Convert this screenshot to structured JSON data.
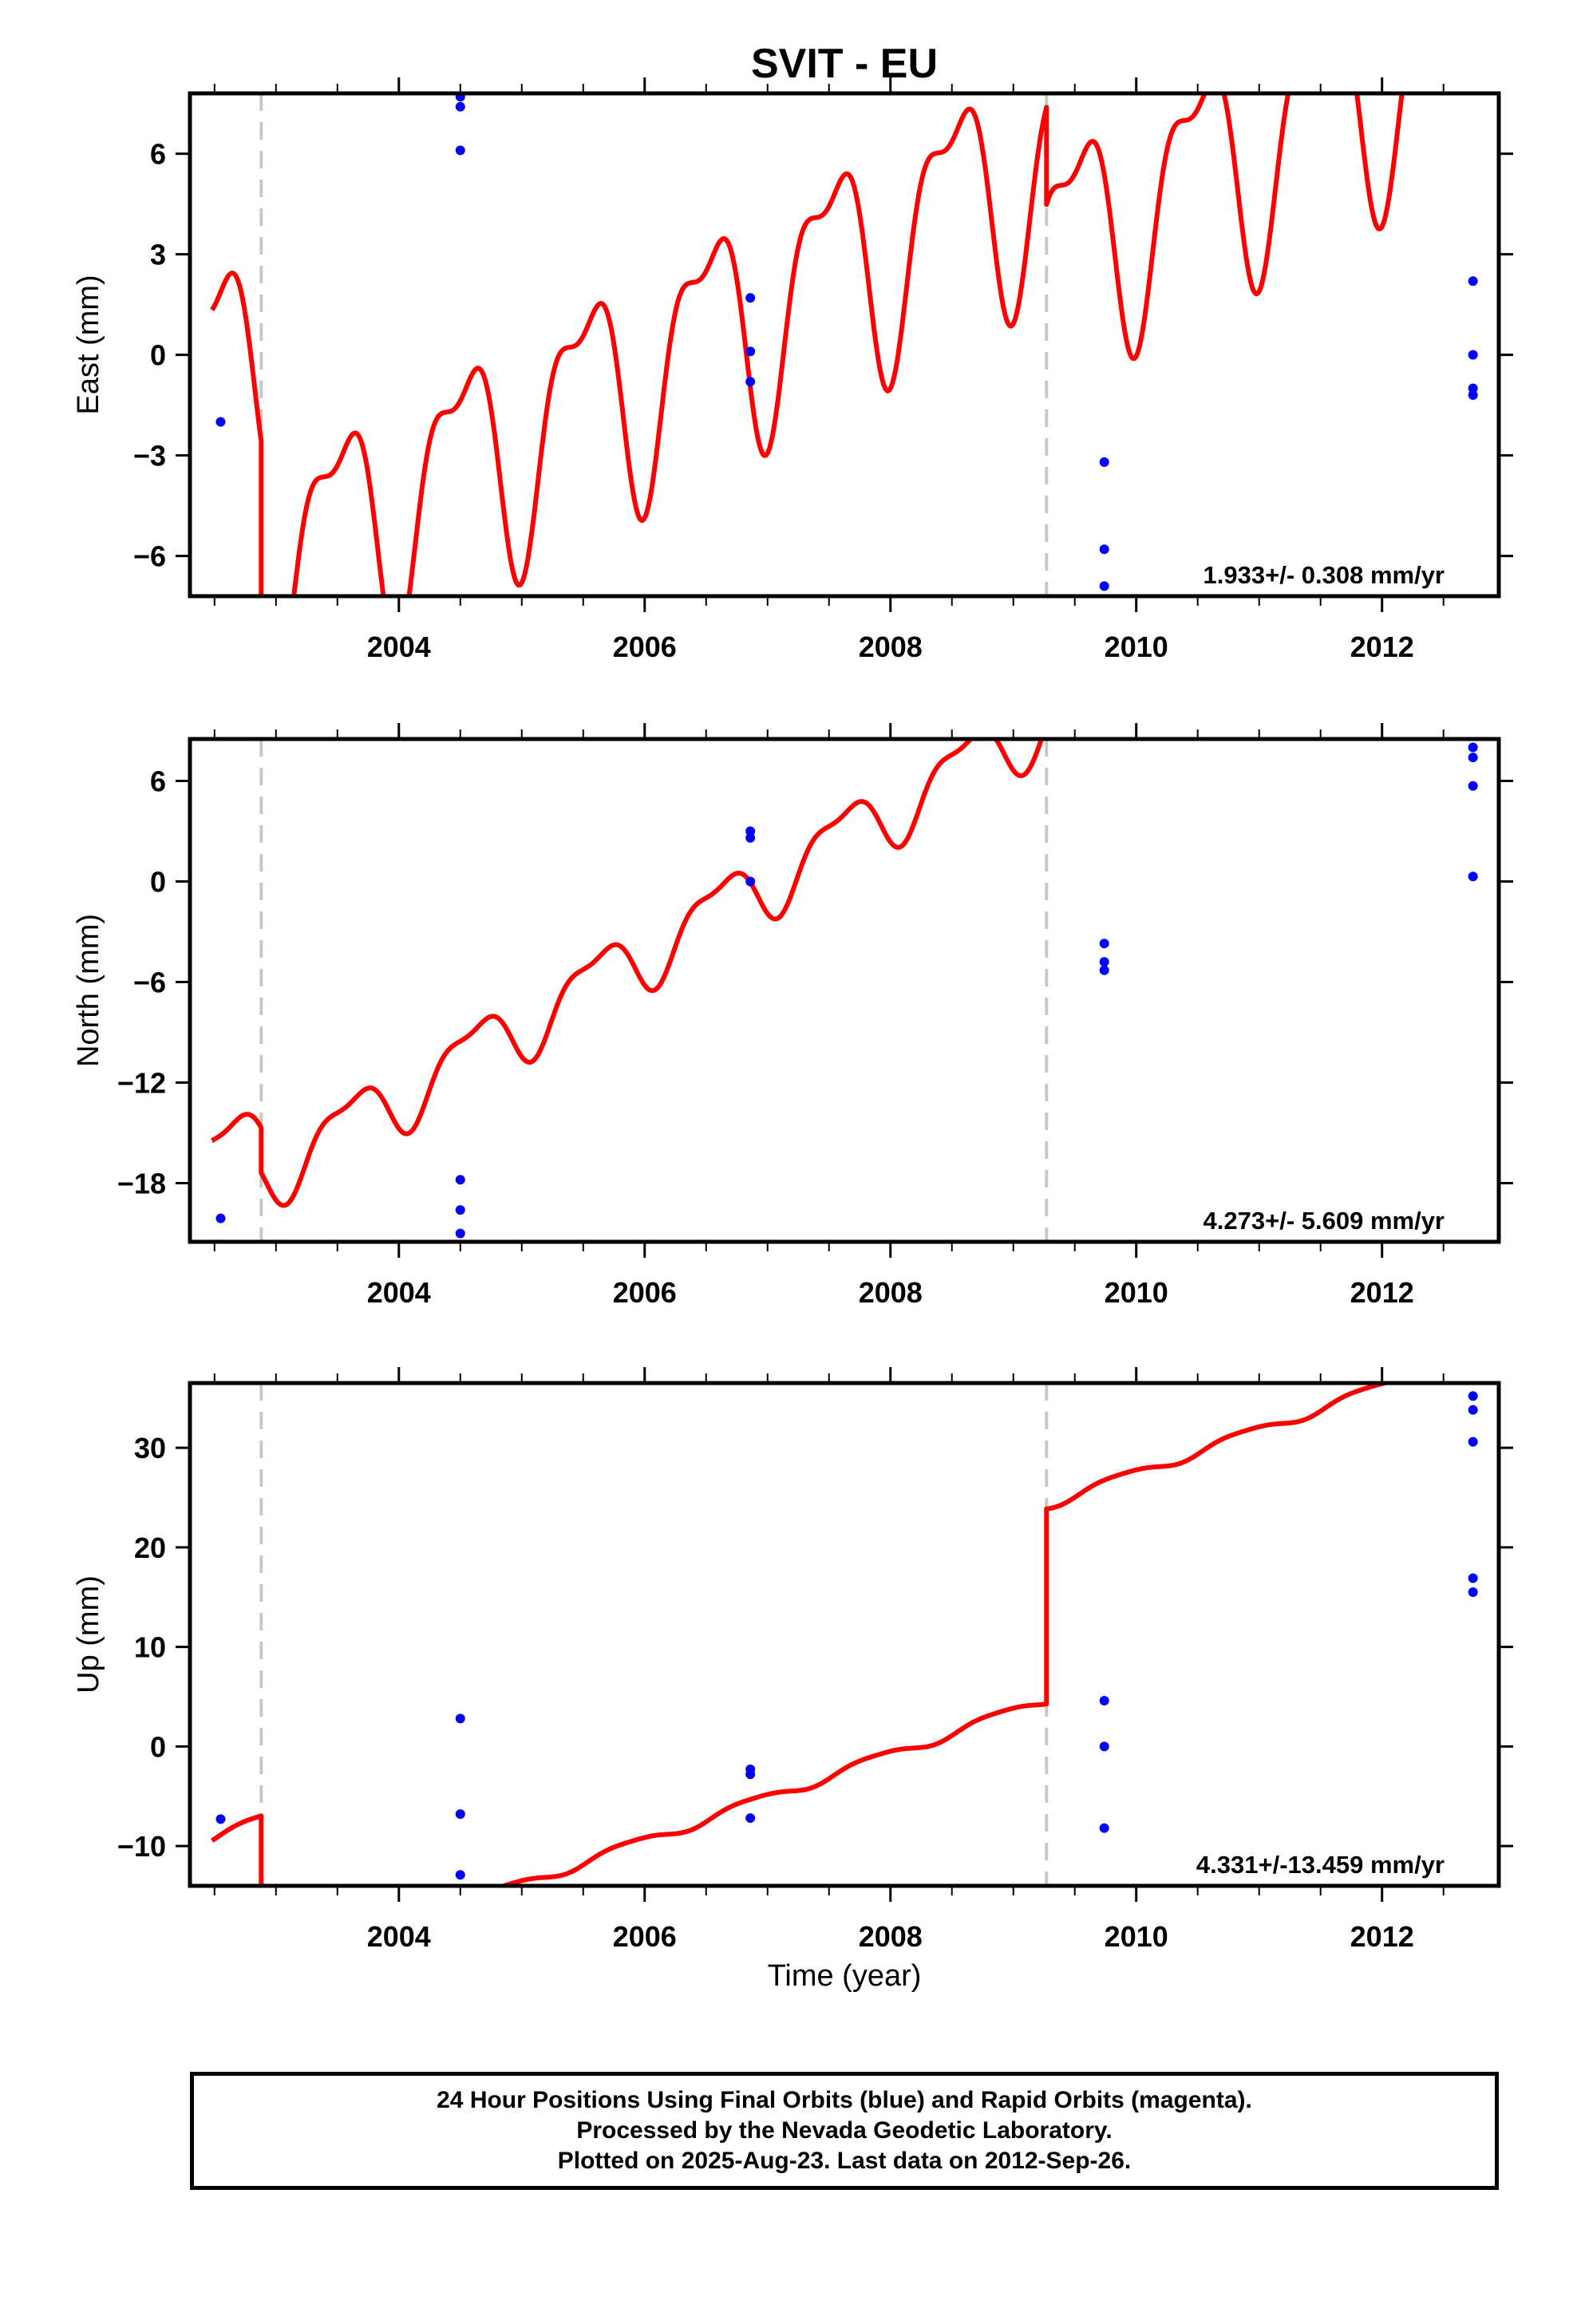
{
  "chart_data": [
    {
      "type": "line",
      "title": "SVIT - EU",
      "ylabel": "East (mm)",
      "xlabel": "",
      "xlim": [
        2002.3,
        2012.95
      ],
      "ylim": [
        -7.2,
        7.8
      ],
      "yticks": [
        6,
        3,
        0,
        -3,
        -6
      ],
      "ytick_labels": [
        "6",
        "3",
        "0",
        "−3",
        "−6"
      ],
      "xticks": [
        2004,
        2006,
        2008,
        2010,
        2012
      ],
      "xtick_labels": [
        "2004",
        "2006",
        "2008",
        "2010",
        "2012"
      ],
      "breaks": [
        2002.88,
        2009.27
      ],
      "rate_text": "1.933+/- 0.308 mm/yr",
      "model": {
        "segments": [
          [
            2002.48,
            2002.88
          ],
          [
            2002.88,
            2009.27
          ],
          [
            2009.27,
            2012.75
          ]
        ],
        "offsets": [
          -0.5,
          -7.2,
          -10.1
        ],
        "rate": 1.933,
        "annual_amp": 3.2,
        "annual_phase": 0.25,
        "semi_amp": 1.3,
        "semi_phase": 0.1
      },
      "points": [
        {
          "x": 2002.55,
          "y": -2.0
        },
        {
          "x": 2004.5,
          "y": 7.7
        },
        {
          "x": 2004.5,
          "y": 7.4
        },
        {
          "x": 2004.5,
          "y": 6.1
        },
        {
          "x": 2006.86,
          "y": 1.7
        },
        {
          "x": 2006.86,
          "y": 0.1
        },
        {
          "x": 2006.86,
          "y": -0.8
        },
        {
          "x": 2009.74,
          "y": -3.2
        },
        {
          "x": 2009.74,
          "y": -5.8
        },
        {
          "x": 2009.74,
          "y": -6.9
        },
        {
          "x": 2012.74,
          "y": 2.2
        },
        {
          "x": 2012.74,
          "y": 0.0
        },
        {
          "x": 2012.74,
          "y": -1.0
        },
        {
          "x": 2012.74,
          "y": -1.2
        }
      ]
    },
    {
      "type": "line",
      "title": "",
      "ylabel": "North (mm)",
      "xlabel": "",
      "xlim": [
        2002.3,
        2012.95
      ],
      "ylim": [
        -21.5,
        8.5
      ],
      "yticks": [
        6,
        0,
        -6,
        -12,
        -18
      ],
      "ytick_labels": [
        "6",
        "0",
        "−6",
        "−12",
        "−18"
      ],
      "xticks": [
        2004,
        2006,
        2008,
        2010,
        2012
      ],
      "xtick_labels": [
        "2004",
        "2006",
        "2008",
        "2010",
        "2012"
      ],
      "breaks": [
        2002.88,
        2009.27
      ],
      "rate_text": "4.273+/- 5.609 mm/yr",
      "model": {
        "segments": [
          [
            2002.48,
            2002.88
          ],
          [
            2002.88,
            2009.27
          ],
          [
            2009.27,
            2012.75
          ]
        ],
        "offsets": [
          -16.5,
          -19.2,
          -11.8
        ],
        "rate": 4.273,
        "annual_amp": 1.9,
        "annual_phase": 0.35,
        "semi_amp": 0.7,
        "semi_phase": 0.2
      },
      "points": [
        {
          "x": 2002.55,
          "y": -20.1
        },
        {
          "x": 2004.5,
          "y": -17.8
        },
        {
          "x": 2004.5,
          "y": -19.6
        },
        {
          "x": 2004.5,
          "y": -21.0
        },
        {
          "x": 2006.86,
          "y": 3.0
        },
        {
          "x": 2006.86,
          "y": 2.6
        },
        {
          "x": 2006.86,
          "y": 0.0
        },
        {
          "x": 2009.74,
          "y": -3.7
        },
        {
          "x": 2009.74,
          "y": -4.8
        },
        {
          "x": 2009.74,
          "y": -5.3
        },
        {
          "x": 2012.74,
          "y": 8.0
        },
        {
          "x": 2012.74,
          "y": 7.4
        },
        {
          "x": 2012.74,
          "y": 5.7
        },
        {
          "x": 2012.74,
          "y": 0.3
        }
      ]
    },
    {
      "type": "line",
      "title": "",
      "ylabel": "Up (mm)",
      "xlabel": "Time (year)",
      "xlim": [
        2002.3,
        2012.95
      ],
      "ylim": [
        -14,
        36.5
      ],
      "yticks": [
        30,
        20,
        10,
        0,
        -10
      ],
      "ytick_labels": [
        "30",
        "20",
        "10",
        "0",
        "−10"
      ],
      "xticks": [
        2004,
        2006,
        2008,
        2010,
        2012
      ],
      "xtick_labels": [
        "2004",
        "2006",
        "2008",
        "2010",
        "2012"
      ],
      "breaks": [
        2002.88,
        2009.27
      ],
      "rate_text": "4.331+/-13.459 mm/yr",
      "model": {
        "segments": [
          [
            2002.48,
            2002.88
          ],
          [
            2002.88,
            2009.27
          ],
          [
            2009.27,
            2012.75
          ]
        ],
        "offsets": [
          -9.0,
          -24.6,
          -5.0
        ],
        "rate": 4.331,
        "annual_amp": 0.5,
        "annual_phase": 0.6,
        "semi_amp": 0.1,
        "semi_phase": 0.0
      },
      "points": [
        {
          "x": 2002.55,
          "y": -7.3
        },
        {
          "x": 2004.5,
          "y": 2.8
        },
        {
          "x": 2004.5,
          "y": -6.8
        },
        {
          "x": 2004.5,
          "y": -12.9
        },
        {
          "x": 2006.86,
          "y": -2.3
        },
        {
          "x": 2006.86,
          "y": -2.8
        },
        {
          "x": 2006.86,
          "y": -7.2
        },
        {
          "x": 2009.74,
          "y": 4.6
        },
        {
          "x": 2009.74,
          "y": 0.0
        },
        {
          "x": 2009.74,
          "y": -8.2
        },
        {
          "x": 2012.74,
          "y": 35.2
        },
        {
          "x": 2012.74,
          "y": 33.8
        },
        {
          "x": 2012.74,
          "y": 30.6
        },
        {
          "x": 2012.74,
          "y": 16.9
        },
        {
          "x": 2012.74,
          "y": 15.5
        }
      ]
    }
  ],
  "colors": {
    "model": "#ff0000",
    "points": "#0000ff",
    "breaks": "#c8c8c8",
    "axes": "#000000"
  },
  "caption": {
    "line1": "24 Hour Positions Using Final Orbits (blue) and Rapid Orbits (magenta).",
    "line2": "Processed by the Nevada Geodetic Laboratory.",
    "line3": "Plotted on 2025-Aug-23. Last data on 2012-Sep-26."
  }
}
